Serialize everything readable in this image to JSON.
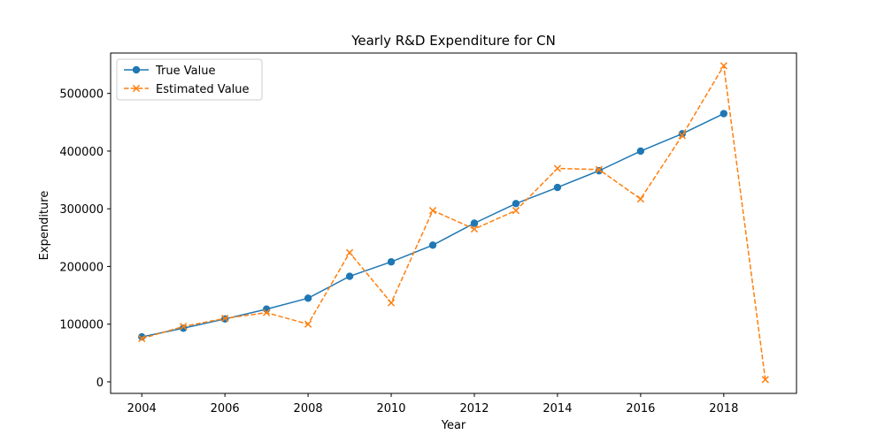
{
  "chart_data": {
    "type": "line",
    "title": "Yearly R&D Expenditure for CN",
    "xlabel": "Year",
    "ylabel": "Expenditure",
    "xlim": [
      2003.25,
      2019.75
    ],
    "ylim": [
      -20000,
      570000
    ],
    "x_ticks": [
      2004,
      2006,
      2008,
      2010,
      2012,
      2014,
      2016,
      2018
    ],
    "y_ticks": [
      0,
      100000,
      200000,
      300000,
      400000,
      500000
    ],
    "grid": false,
    "legend_position": "top-left",
    "series": [
      {
        "name": "True Value",
        "color": "#1f77b4",
        "line_style": "solid",
        "marker": "circle",
        "x": [
          2004,
          2005,
          2006,
          2007,
          2008,
          2009,
          2010,
          2011,
          2012,
          2013,
          2014,
          2015,
          2016,
          2017,
          2018
        ],
        "values": [
          78000,
          93000,
          109000,
          126000,
          145000,
          183000,
          208000,
          237000,
          275000,
          309000,
          337000,
          366000,
          400000,
          430000,
          465000
        ]
      },
      {
        "name": "Estimated Value",
        "color": "#ff7f0e",
        "line_style": "dashed",
        "marker": "x",
        "x": [
          2004,
          2005,
          2006,
          2007,
          2008,
          2009,
          2010,
          2011,
          2012,
          2013,
          2014,
          2015,
          2016,
          2017,
          2018,
          2019
        ],
        "values": [
          75000,
          96000,
          110000,
          120000,
          100000,
          224000,
          137000,
          297000,
          265000,
          297000,
          370000,
          368000,
          317000,
          427000,
          548000,
          4000
        ]
      }
    ]
  }
}
